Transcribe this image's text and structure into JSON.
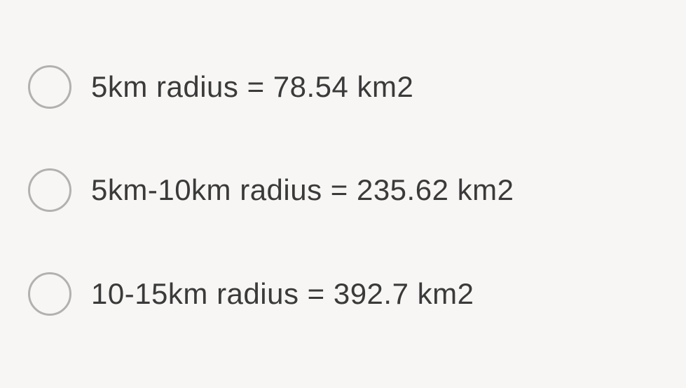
{
  "checklist": {
    "items": [
      {
        "label": "5km radius = 78.54 km2"
      },
      {
        "label": "5km-10km radius = 235.62 km2"
      },
      {
        "label": "10-15km radius  = 392.7 km2"
      }
    ]
  },
  "style": {
    "background_color": "#f7f6f4",
    "circle_border_color": "#b2b1b0",
    "circle_border_width": 3,
    "circle_diameter": 62,
    "text_color": "#3a3a3a",
    "font_size": 42,
    "font_weight": 400
  }
}
